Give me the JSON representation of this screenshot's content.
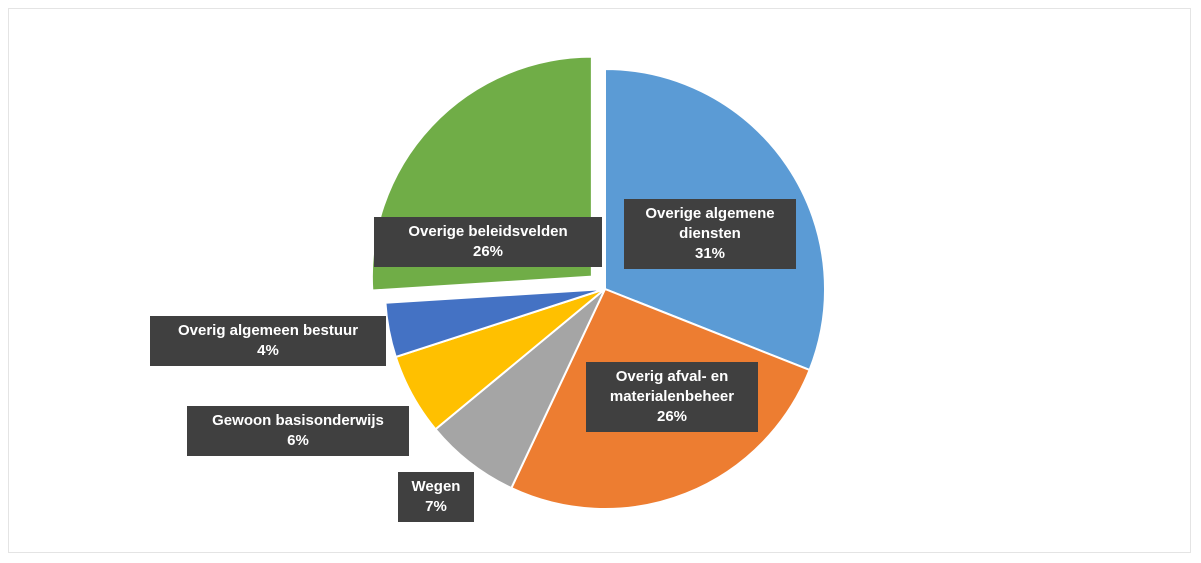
{
  "chart_data": {
    "type": "pie",
    "categories": [
      "Overige algemene diensten",
      "Overig afval- en materialenbeheer",
      "Wegen",
      "Gewoon basisonderwijs",
      "Overig algemeen bestuur",
      "Overige beleidsvelden"
    ],
    "values": [
      31,
      26,
      7,
      6,
      4,
      26
    ],
    "value_labels": [
      "31%",
      "26%",
      "7%",
      "6%",
      "4%",
      "26%"
    ],
    "colors": [
      "#5b9bd5",
      "#ed7d31",
      "#a5a5a5",
      "#ffc000",
      "#4472c4",
      "#70ad47"
    ]
  }
}
